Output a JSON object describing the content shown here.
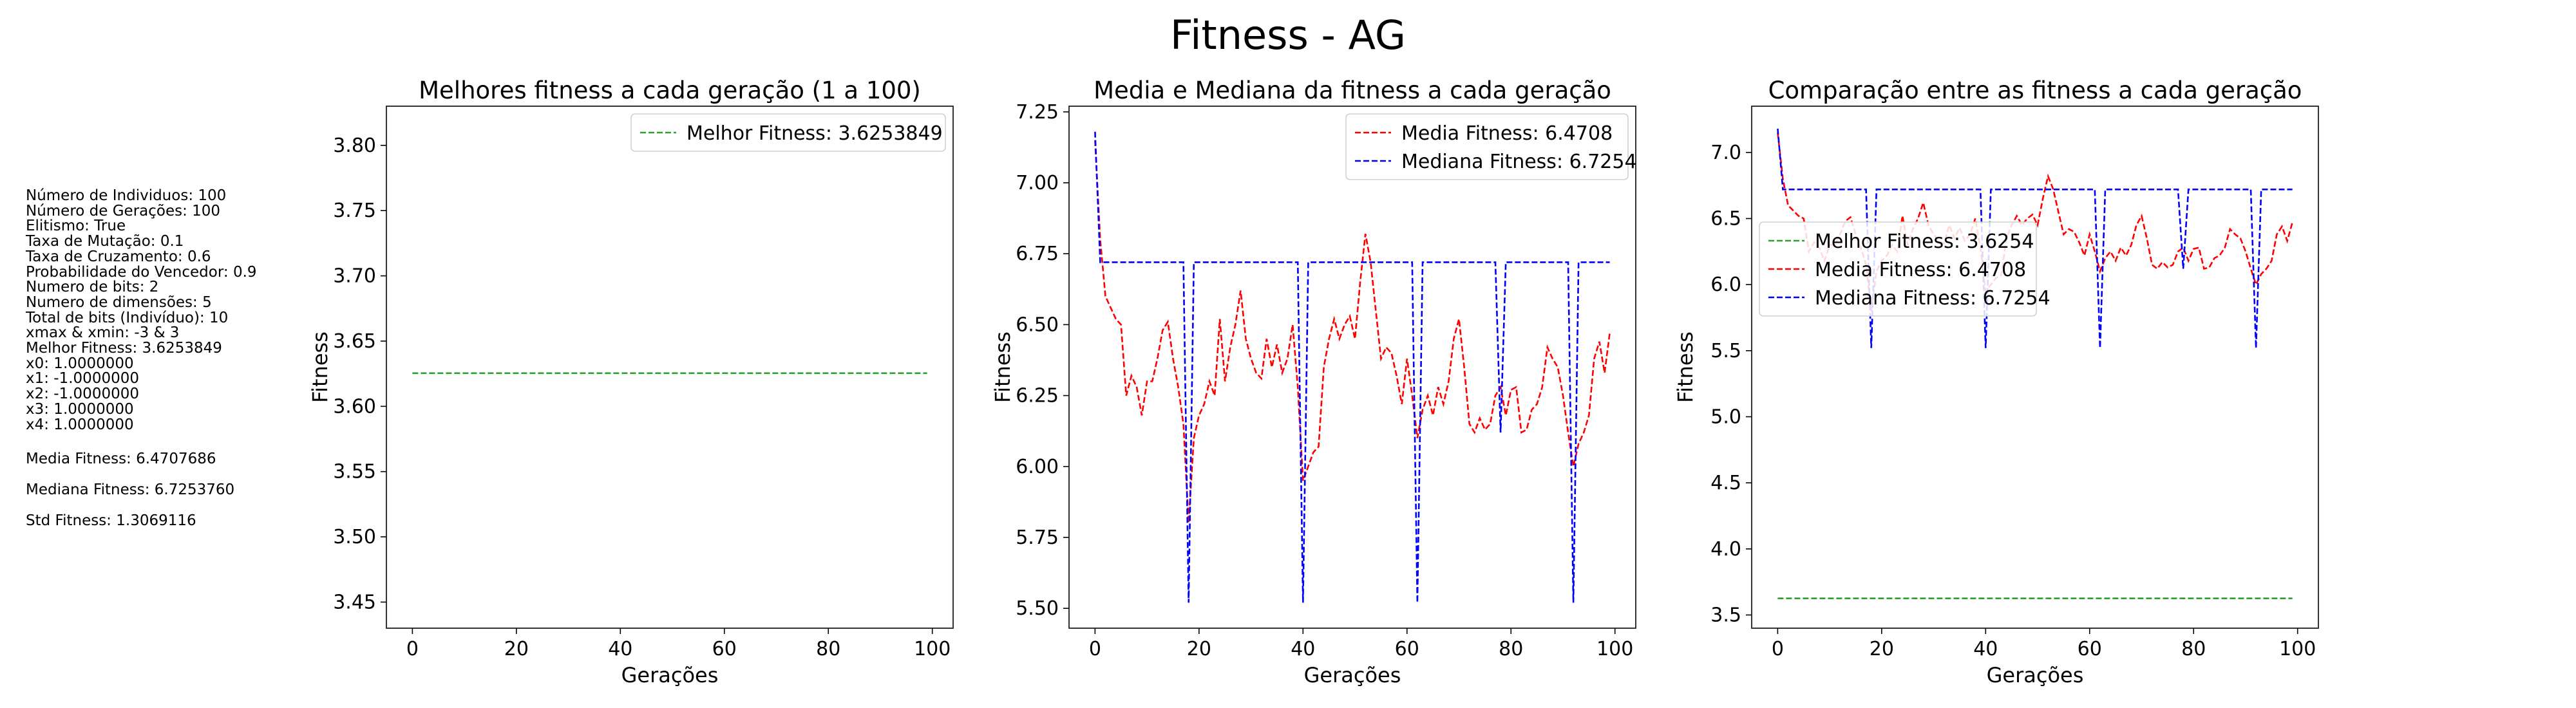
{
  "figure_title": "Fitness - AG",
  "params": {
    "lines": [
      "Número de Individuos: 100",
      "Número de Gerações: 100",
      "Elitismo: True",
      "Taxa de Mutação: 0.1",
      "Taxa de Cruzamento: 0.6",
      "Probabilidade do Vencedor: 0.9",
      "Numero de bits: 2",
      "Numero de dimensões: 5",
      "Total de bits (Indivíduo): 10",
      "xmax & xmin: -3 & 3",
      "Melhor Fitness: 3.6253849",
      "x0: 1.0000000",
      "x1: -1.0000000",
      "x2: -1.0000000",
      "x3: 1.0000000",
      "x4: 1.0000000"
    ],
    "media": "Media Fitness: 6.4707686",
    "mediana": "Mediana Fitness: 6.7253760",
    "std": "Std Fitness: 1.3069116"
  },
  "colors": {
    "best": "#2ca02c",
    "mean": "#ff0000",
    "median": "#0000ff"
  },
  "chart_data": [
    {
      "type": "line",
      "title": "Melhores fitness a cada geração (1 a 100)",
      "xlabel": "Gerações",
      "ylabel": "Fitness",
      "xlim": [
        -5,
        104
      ],
      "ylim": [
        3.43,
        3.83
      ],
      "xticks": [
        "0",
        "20",
        "40",
        "60",
        "80",
        "100"
      ],
      "yticks": [
        "3.45",
        "3.50",
        "3.55",
        "3.60",
        "3.65",
        "3.70",
        "3.75",
        "3.80"
      ],
      "legend_position": "upper right",
      "grid": false,
      "series": [
        {
          "name": "Melhor Fitness: 3.6253849",
          "color": "#2ca02c",
          "style": "dashed",
          "constant": 3.6254,
          "x_range": [
            0,
            99
          ]
        }
      ]
    },
    {
      "type": "line",
      "title": "Media e Mediana da fitness a cada geração",
      "xlabel": "Gerações",
      "ylabel": "Fitness",
      "xlim": [
        -5,
        104
      ],
      "ylim": [
        5.43,
        7.27
      ],
      "xticks": [
        "0",
        "20",
        "40",
        "60",
        "80",
        "100"
      ],
      "yticks": [
        "5.50",
        "5.75",
        "6.00",
        "6.25",
        "6.50",
        "6.75",
        "7.00",
        "7.25"
      ],
      "legend_position": "upper right",
      "grid": false,
      "series": [
        {
          "name": "Media Fitness: 6.4708",
          "color": "#ff0000",
          "style": "dashed",
          "ref": "mean"
        },
        {
          "name": "Mediana Fitness: 6.7254",
          "color": "#0000ff",
          "style": "dashed",
          "ref": "median"
        }
      ]
    },
    {
      "type": "line",
      "title": "Comparação entre as fitness a cada geração",
      "xlabel": "Gerações",
      "ylabel": "Fitness",
      "xlim": [
        -5,
        104
      ],
      "ylim": [
        3.4,
        7.35
      ],
      "xticks": [
        "0",
        "20",
        "40",
        "60",
        "80",
        "100"
      ],
      "yticks": [
        "3.5",
        "4.0",
        "4.5",
        "5.0",
        "5.5",
        "6.0",
        "6.5",
        "7.0"
      ],
      "legend_position": "center left",
      "grid": false,
      "series": [
        {
          "name": "Melhor Fitness: 3.6254",
          "color": "#2ca02c",
          "style": "dashed",
          "constant": 3.6254,
          "x_range": [
            0,
            99
          ]
        },
        {
          "name": "Media Fitness: 6.4708",
          "color": "#ff0000",
          "style": "dashed",
          "ref": "mean"
        },
        {
          "name": "Mediana Fitness: 6.7254",
          "color": "#0000ff",
          "style": "dashed",
          "ref": "median"
        }
      ]
    }
  ],
  "series_values": {
    "mean": [
      7.15,
      6.8,
      6.6,
      6.56,
      6.52,
      6.5,
      6.25,
      6.32,
      6.28,
      6.18,
      6.3,
      6.3,
      6.38,
      6.48,
      6.51,
      6.38,
      6.28,
      6.15,
      5.8,
      6.1,
      6.18,
      6.22,
      6.3,
      6.25,
      6.52,
      6.3,
      6.42,
      6.5,
      6.62,
      6.45,
      6.38,
      6.33,
      6.31,
      6.45,
      6.35,
      6.43,
      6.33,
      6.38,
      6.5,
      6.28,
      5.95,
      6.0,
      6.05,
      6.07,
      6.35,
      6.45,
      6.52,
      6.45,
      6.5,
      6.53,
      6.45,
      6.65,
      6.82,
      6.72,
      6.55,
      6.38,
      6.42,
      6.4,
      6.32,
      6.22,
      6.38,
      6.25,
      6.1,
      6.2,
      6.25,
      6.18,
      6.28,
      6.22,
      6.3,
      6.45,
      6.52,
      6.35,
      6.15,
      6.12,
      6.17,
      6.13,
      6.15,
      6.25,
      6.28,
      6.18,
      6.27,
      6.28,
      6.12,
      6.13,
      6.2,
      6.22,
      6.28,
      6.42,
      6.38,
      6.35,
      6.25,
      6.12,
      6.0,
      6.08,
      6.12,
      6.18,
      6.38,
      6.44,
      6.33,
      6.47
    ],
    "median": [
      7.18,
      6.72,
      6.72,
      6.72,
      6.72,
      6.72,
      6.72,
      6.72,
      6.72,
      6.72,
      6.72,
      6.72,
      6.72,
      6.72,
      6.72,
      6.72,
      6.72,
      6.72,
      5.52,
      6.72,
      6.72,
      6.72,
      6.72,
      6.72,
      6.72,
      6.72,
      6.72,
      6.72,
      6.72,
      6.72,
      6.72,
      6.72,
      6.72,
      6.72,
      6.72,
      6.72,
      6.72,
      6.72,
      6.72,
      6.72,
      5.52,
      6.72,
      6.72,
      6.72,
      6.72,
      6.72,
      6.72,
      6.72,
      6.72,
      6.72,
      6.72,
      6.72,
      6.72,
      6.72,
      6.72,
      6.72,
      6.72,
      6.72,
      6.72,
      6.72,
      6.72,
      6.72,
      5.52,
      6.72,
      6.72,
      6.72,
      6.72,
      6.72,
      6.72,
      6.72,
      6.72,
      6.72,
      6.72,
      6.72,
      6.72,
      6.72,
      6.72,
      6.72,
      6.12,
      6.72,
      6.72,
      6.72,
      6.72,
      6.72,
      6.72,
      6.72,
      6.72,
      6.72,
      6.72,
      6.72,
      6.72,
      6.72,
      5.52,
      6.72,
      6.72,
      6.72,
      6.72,
      6.72,
      6.72,
      6.72
    ]
  }
}
